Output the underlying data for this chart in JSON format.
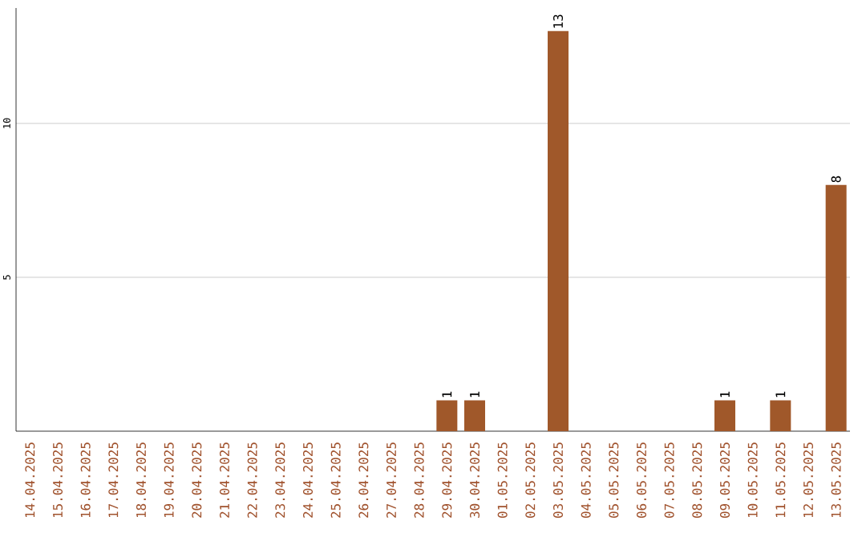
{
  "chart_data": {
    "type": "bar",
    "categories": [
      "14.04.2025",
      "15.04.2025",
      "16.04.2025",
      "17.04.2025",
      "18.04.2025",
      "19.04.2025",
      "20.04.2025",
      "21.04.2025",
      "22.04.2025",
      "23.04.2025",
      "24.04.2025",
      "25.04.2025",
      "26.04.2025",
      "27.04.2025",
      "28.04.2025",
      "29.04.2025",
      "30.04.2025",
      "01.05.2025",
      "02.05.2025",
      "03.05.2025",
      "04.05.2025",
      "05.05.2025",
      "06.05.2025",
      "07.05.2025",
      "08.05.2025",
      "09.05.2025",
      "10.05.2025",
      "11.05.2025",
      "12.05.2025",
      "13.05.2025"
    ],
    "values": [
      0,
      0,
      0,
      0,
      0,
      0,
      0,
      0,
      0,
      0,
      0,
      0,
      0,
      0,
      0,
      1,
      1,
      0,
      0,
      13,
      0,
      0,
      0,
      0,
      0,
      1,
      0,
      1,
      0,
      8
    ],
    "value_labels": [
      null,
      null,
      null,
      null,
      null,
      null,
      null,
      null,
      null,
      null,
      null,
      null,
      null,
      null,
      null,
      "1",
      "1",
      null,
      null,
      "13",
      null,
      null,
      null,
      null,
      null,
      "1",
      null,
      "1",
      null,
      "8"
    ],
    "color": "#a0582a",
    "ylim": [
      0,
      13.75
    ],
    "yticks": [
      5,
      10
    ],
    "grid": "y"
  }
}
